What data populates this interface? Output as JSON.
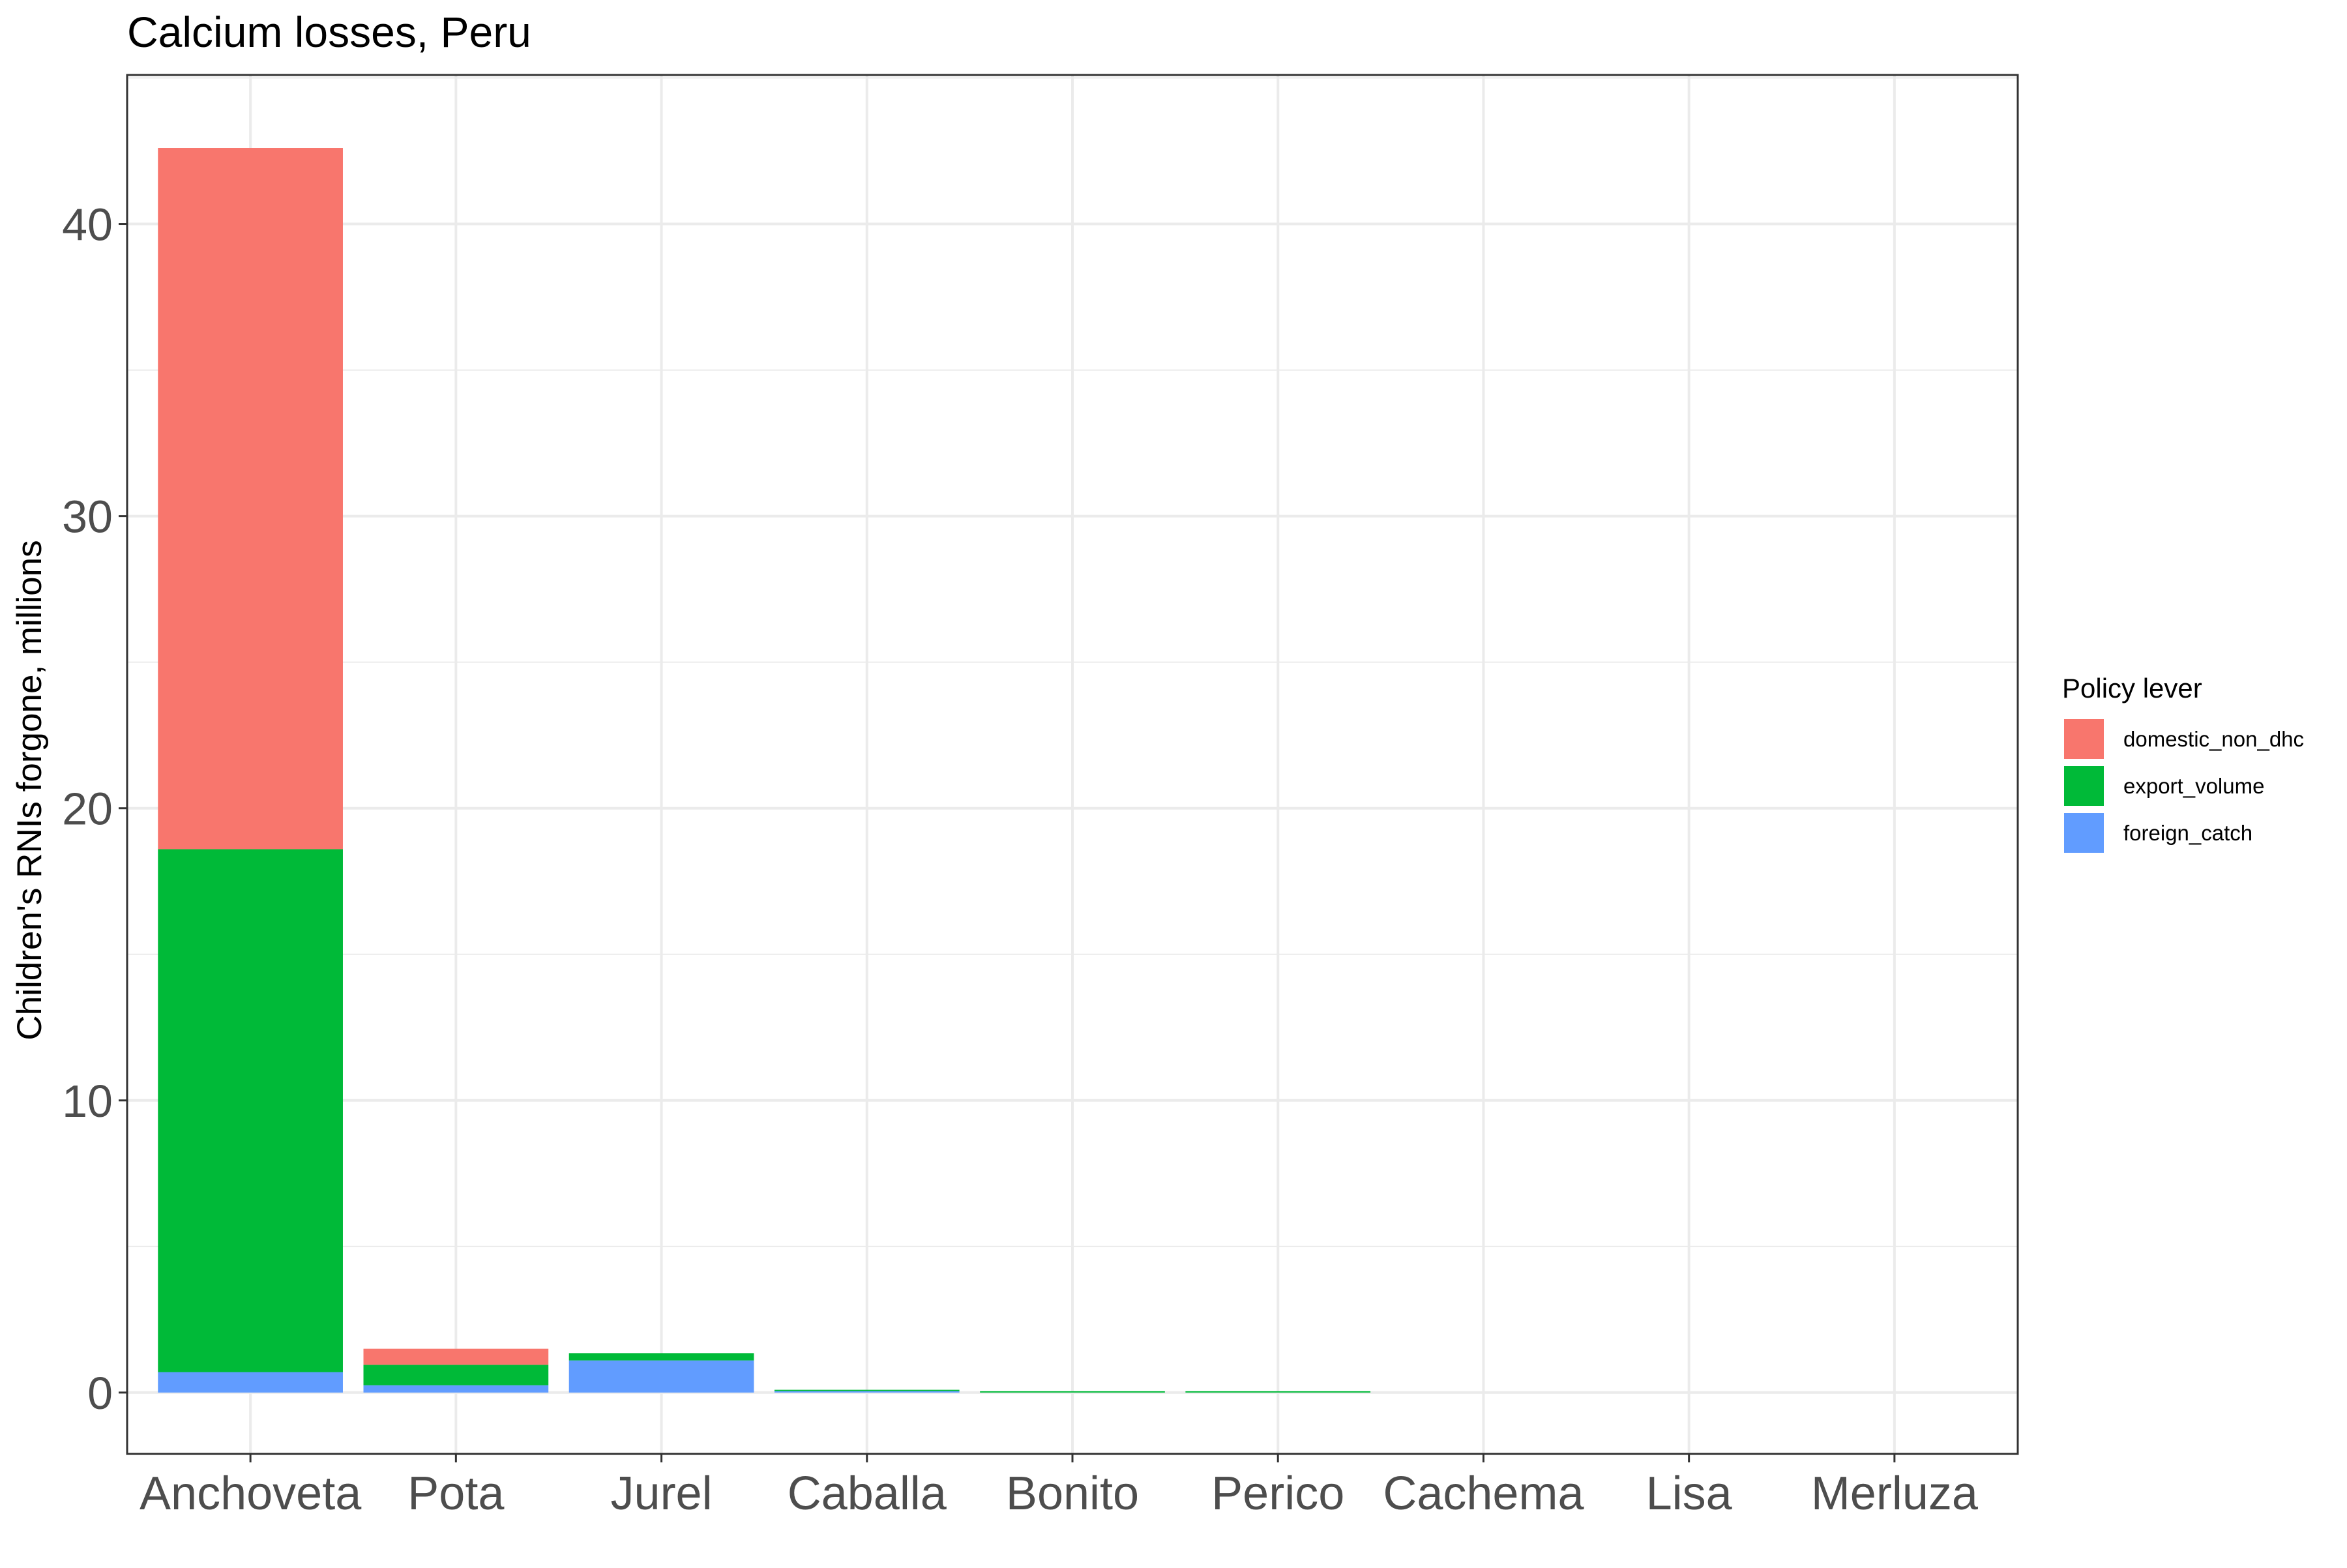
{
  "chart_data": {
    "type": "bar",
    "stacked": true,
    "title": "Calcium losses, Peru",
    "xlabel": "",
    "ylabel": "Children's RNIs forgone, millions",
    "ylim": [
      -2.1,
      45.1
    ],
    "yticks": [
      0,
      10,
      20,
      30,
      40
    ],
    "grid": true,
    "legend_position": "right",
    "legend_title": "Policy lever",
    "categories": [
      "Anchoveta",
      "Pota",
      "Jurel",
      "Caballa",
      "Bonito",
      "Perico",
      "Cachema",
      "Lisa",
      "Merluza"
    ],
    "series": [
      {
        "name": "foreign_catch",
        "color": "#619CFF",
        "values": [
          0.7,
          0.25,
          1.1,
          0.05,
          0.0,
          0.0,
          0.0,
          0.0,
          0.0
        ]
      },
      {
        "name": "export_volume",
        "color": "#00BA38",
        "values": [
          17.9,
          0.7,
          0.25,
          0.02,
          0.03,
          0.04,
          0.0,
          0.0,
          0.0
        ]
      },
      {
        "name": "domestic_non_dhc",
        "color": "#F8766D",
        "values": [
          24.0,
          0.55,
          0.0,
          0.0,
          0.0,
          0.0,
          0.0,
          0.0,
          0.0
        ]
      }
    ],
    "legend_order": [
      "domestic_non_dhc",
      "export_volume",
      "foreign_catch"
    ]
  }
}
